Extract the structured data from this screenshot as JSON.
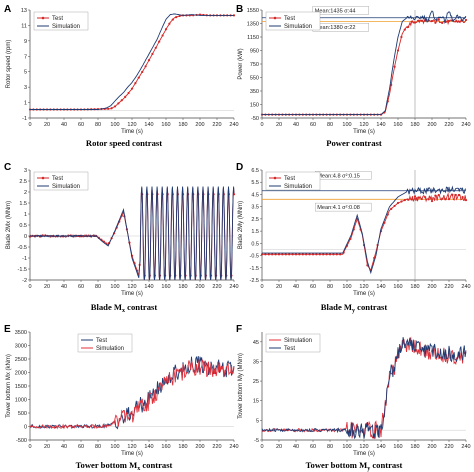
{
  "chart_data": [
    {
      "panel": "A",
      "type": "line",
      "caption": "Rotor speed contrast",
      "xlabel": "Time (s)",
      "ylabel": "Rotor speed (rpm)",
      "xlim": [
        0,
        240
      ],
      "ylim": [
        -1,
        13
      ],
      "xticks": [
        0,
        20,
        40,
        60,
        80,
        100,
        120,
        140,
        160,
        180,
        200,
        220,
        240
      ],
      "yticks": [
        -1,
        1,
        3,
        5,
        7,
        9,
        11,
        13
      ],
      "legend": "top-left",
      "grid": false,
      "series": [
        {
          "name": "Test",
          "color": "#d62728",
          "marker": "dot",
          "style": "smooth",
          "x": [
            0,
            20,
            40,
            60,
            80,
            95,
            100,
            105,
            110,
            115,
            120,
            125,
            130,
            135,
            140,
            145,
            150,
            155,
            160,
            165,
            170,
            175,
            180,
            190,
            200,
            210,
            220,
            230,
            240
          ],
          "y": [
            0.1,
            0.1,
            0.1,
            0.1,
            0.15,
            0.2,
            0.5,
            1.0,
            1.5,
            2.1,
            2.8,
            3.7,
            4.6,
            5.5,
            6.5,
            7.5,
            8.5,
            9.5,
            10.5,
            11.4,
            12.0,
            12.2,
            12.3,
            12.3,
            12.4,
            12.3,
            12.3,
            12.3,
            12.3
          ]
        },
        {
          "name": "Simulation",
          "color": "#1f3b73",
          "marker": "none",
          "style": "smooth",
          "x": [
            0,
            20,
            40,
            60,
            80,
            90,
            95,
            100,
            105,
            110,
            115,
            120,
            125,
            130,
            135,
            140,
            145,
            150,
            155,
            160,
            165,
            170,
            175,
            180,
            190,
            200,
            210,
            220,
            230,
            240
          ],
          "y": [
            0.1,
            0.1,
            0.1,
            0.1,
            0.1,
            0.3,
            0.6,
            1.2,
            1.8,
            2.3,
            3.0,
            3.6,
            4.4,
            5.3,
            6.3,
            7.3,
            8.3,
            9.3,
            10.6,
            11.8,
            12.4,
            12.5,
            12.4,
            12.3,
            12.4,
            12.3,
            12.3,
            12.3,
            12.3,
            12.3
          ]
        }
      ]
    },
    {
      "panel": "B",
      "type": "line",
      "caption": "Power contrast",
      "xlabel": "Time (s)",
      "ylabel": "Power (kW)",
      "xlim": [
        0,
        240
      ],
      "ylim": [
        -50,
        1550
      ],
      "xticks": [
        0,
        20,
        40,
        60,
        80,
        100,
        120,
        140,
        160,
        180,
        200,
        220,
        240
      ],
      "yticks": [
        -50,
        150,
        350,
        550,
        750,
        950,
        1150,
        1350,
        1550
      ],
      "legend": "top-left",
      "grid": false,
      "ref_lines": [
        {
          "y": 1435,
          "color": "#1f3b73"
        },
        {
          "y": 1380,
          "color": "#f0a030"
        },
        {
          "x": 180,
          "color": "#999999"
        }
      ],
      "annotations": [
        {
          "text": "Mean:1435  σ:44",
          "x": 62,
          "y": 1515
        },
        {
          "text": "Mean:1380  σ:22",
          "x": 62,
          "y": 1265
        }
      ],
      "series": [
        {
          "name": "Test",
          "color": "#d62728",
          "marker": "dot",
          "style": "smooth",
          "x": [
            0,
            20,
            40,
            60,
            80,
            100,
            120,
            140,
            145,
            150,
            155,
            160,
            165,
            170,
            175,
            180,
            190,
            200,
            210,
            220,
            230,
            240
          ],
          "y": [
            0,
            0,
            0,
            0,
            0,
            0,
            0,
            0,
            40,
            300,
            650,
            950,
            1200,
            1300,
            1350,
            1380,
            1385,
            1380,
            1390,
            1370,
            1385,
            1375
          ]
        },
        {
          "name": "Simulation",
          "color": "#1f3b73",
          "marker": "none",
          "style": "smooth",
          "x": [
            0,
            20,
            40,
            60,
            80,
            100,
            120,
            140,
            145,
            150,
            155,
            160,
            165,
            170,
            175,
            180,
            190,
            195,
            200,
            205,
            210,
            215,
            220,
            225,
            230,
            235,
            240
          ],
          "y": [
            0,
            0,
            0,
            0,
            0,
            0,
            0,
            0,
            60,
            380,
            800,
            1150,
            1380,
            1430,
            1440,
            1420,
            1450,
            1390,
            1520,
            1400,
            1470,
            1390,
            1530,
            1380,
            1450,
            1410,
            1440
          ]
        }
      ]
    },
    {
      "panel": "C",
      "type": "line",
      "caption": "Blade M",
      "caption_sub": "x",
      "caption_tail": " contrast",
      "xlabel": "Time (s)",
      "ylabel": "Blade 2Mx (MNm)",
      "xlim": [
        0,
        240
      ],
      "ylim": [
        -2,
        3
      ],
      "xticks": [
        0,
        20,
        40,
        60,
        80,
        100,
        120,
        140,
        160,
        180,
        200,
        220,
        240
      ],
      "yticks": [
        -2,
        -1.5,
        -1,
        -0.5,
        0,
        0.5,
        1,
        1.5,
        2,
        2.5,
        3
      ],
      "legend": "top-left",
      "grid": false,
      "oscillation": {
        "start": 130,
        "end": 240,
        "period": 6,
        "amplitude": 2.2
      },
      "series": [
        {
          "name": "Test",
          "color": "#d62728",
          "marker": "dot",
          "style": "oscillation",
          "x": [
            0,
            20,
            40,
            60,
            78,
            85,
            92,
            100,
            110,
            120,
            128,
            135,
            240
          ],
          "y": [
            0,
            0,
            0,
            0,
            0,
            -0.2,
            -0.4,
            0.2,
            1.1,
            -0.9,
            -1.8,
            1.6,
            1.6
          ]
        },
        {
          "name": "Simulation",
          "color": "#1f3b73",
          "marker": "none",
          "style": "oscillation",
          "x": [
            0,
            20,
            40,
            60,
            78,
            85,
            92,
            100,
            110,
            120,
            128,
            135,
            240
          ],
          "y": [
            0,
            0,
            0,
            0,
            0,
            -0.25,
            -0.45,
            0.25,
            1.2,
            -1.0,
            -1.9,
            1.7,
            1.7
          ]
        }
      ]
    },
    {
      "panel": "D",
      "type": "line",
      "caption": "Blade M",
      "caption_sub": "y",
      "caption_tail": " contrast",
      "xlabel": "Time (s)",
      "ylabel": "Blade 2My (MNm)",
      "xlim": [
        0,
        240
      ],
      "ylim": [
        -2.5,
        6.5
      ],
      "xticks": [
        0,
        20,
        40,
        60,
        80,
        100,
        120,
        140,
        160,
        180,
        200,
        220,
        240
      ],
      "yticks": [
        -2.5,
        -1.5,
        -0.5,
        0.5,
        1.5,
        2.5,
        3.5,
        4.5,
        5.5,
        6.5
      ],
      "legend": "top-left",
      "grid": false,
      "ref_lines": [
        {
          "y": 4.8,
          "color": "#1f3b73"
        },
        {
          "y": 4.1,
          "color": "#f0a030"
        },
        {
          "x": 180,
          "color": "#999999"
        }
      ],
      "annotations": [
        {
          "text": "Mean:4.8  σ²:0.15",
          "x": 65,
          "y": 5.9
        },
        {
          "text": "Mean:4.1  σ²:0.08",
          "x": 65,
          "y": 3.3
        }
      ],
      "series": [
        {
          "name": "Test",
          "color": "#d62728",
          "marker": "dot",
          "style": "smooth",
          "x": [
            0,
            20,
            40,
            60,
            80,
            95,
            105,
            112,
            118,
            124,
            128,
            134,
            140,
            150,
            160,
            170,
            180,
            200,
            220,
            240
          ],
          "y": [
            -0.4,
            -0.4,
            -0.4,
            -0.4,
            -0.4,
            -0.4,
            1.0,
            2.5,
            1.2,
            -1.3,
            -1.7,
            -0.2,
            1.5,
            3.2,
            3.8,
            4.1,
            4.2,
            4.2,
            4.3,
            4.2
          ]
        },
        {
          "name": "Simulation",
          "color": "#1f3b73",
          "marker": "none",
          "style": "smooth",
          "x": [
            0,
            20,
            40,
            60,
            80,
            95,
            105,
            112,
            118,
            124,
            128,
            134,
            140,
            150,
            160,
            170,
            180,
            200,
            220,
            240
          ],
          "y": [
            -0.3,
            -0.3,
            -0.3,
            -0.3,
            -0.3,
            -0.3,
            1.2,
            2.8,
            1.3,
            -1.0,
            -1.9,
            -0.5,
            1.7,
            3.5,
            4.3,
            4.7,
            4.8,
            4.8,
            4.9,
            4.8
          ]
        }
      ]
    },
    {
      "panel": "E",
      "type": "line",
      "caption": "Tower bottom M",
      "caption_sub": "x",
      "caption_tail": " contrast",
      "xlabel": "Time (s)",
      "ylabel": "Tower bottom Mx (kNm)",
      "xlim": [
        0,
        240
      ],
      "ylim": [
        -500,
        3500
      ],
      "xticks": [
        0,
        20,
        40,
        60,
        80,
        100,
        120,
        140,
        160,
        180,
        200,
        220,
        240
      ],
      "yticks": [
        -500,
        0,
        500,
        1000,
        1500,
        2000,
        2500,
        3000,
        3500
      ],
      "legend": "top-center",
      "grid": false,
      "series": [
        {
          "name": "Test",
          "color": "#1f3b73",
          "marker": "none",
          "style": "noisy",
          "x": [
            0,
            20,
            40,
            60,
            80,
            95,
            100,
            110,
            120,
            130,
            140,
            150,
            160,
            170,
            180,
            190,
            200,
            210,
            220,
            230,
            240
          ],
          "y": [
            0,
            0,
            0,
            0,
            0,
            50,
            200,
            300,
            500,
            800,
            1000,
            1400,
            1700,
            2000,
            2100,
            2300,
            2300,
            2200,
            2200,
            2100,
            2100
          ]
        },
        {
          "name": "Simulation",
          "color": "#e0303a",
          "marker": "none",
          "style": "noisy",
          "x": [
            0,
            20,
            40,
            60,
            80,
            95,
            100,
            110,
            120,
            130,
            140,
            150,
            160,
            170,
            180,
            190,
            200,
            210,
            220,
            230,
            240
          ],
          "y": [
            0,
            0,
            0,
            0,
            0,
            50,
            200,
            300,
            450,
            700,
            900,
            1300,
            1600,
            1900,
            2000,
            2200,
            2200,
            2100,
            2100,
            2000,
            2000
          ]
        }
      ]
    },
    {
      "panel": "F",
      "type": "line",
      "caption": "Tower bottom M",
      "caption_sub": "y",
      "caption_tail": " contrast",
      "xlabel": "Time (s)",
      "ylabel": "Tower bottom My (MNm)",
      "xlim": [
        0,
        240
      ],
      "ylim": [
        -5,
        50
      ],
      "xticks": [
        0,
        20,
        40,
        60,
        80,
        100,
        120,
        140,
        160,
        180,
        200,
        220,
        240
      ],
      "yticks": [
        -5,
        5,
        15,
        25,
        35,
        45
      ],
      "legend": "top-left",
      "grid": false,
      "series": [
        {
          "name": "Simulation",
          "color": "#e0303a",
          "marker": "none",
          "style": "noisy",
          "x": [
            0,
            20,
            40,
            60,
            80,
            100,
            120,
            140,
            145,
            150,
            155,
            160,
            165,
            170,
            180,
            190,
            200,
            210,
            220,
            230,
            240
          ],
          "y": [
            0,
            0,
            0,
            0,
            0,
            0,
            0,
            0,
            12,
            28,
            30,
            38,
            42,
            44,
            42,
            40,
            40,
            38,
            38,
            38,
            38
          ]
        },
        {
          "name": "Test",
          "color": "#1f3b73",
          "marker": "none",
          "style": "noisy",
          "x": [
            0,
            20,
            40,
            60,
            80,
            100,
            120,
            140,
            145,
            150,
            155,
            160,
            165,
            170,
            180,
            190,
            200,
            210,
            220,
            230,
            240
          ],
          "y": [
            0,
            0,
            0,
            0,
            0,
            0,
            0,
            0,
            13,
            30,
            31,
            40,
            44,
            46,
            43,
            41,
            41,
            39,
            39,
            39,
            39
          ]
        }
      ]
    }
  ]
}
